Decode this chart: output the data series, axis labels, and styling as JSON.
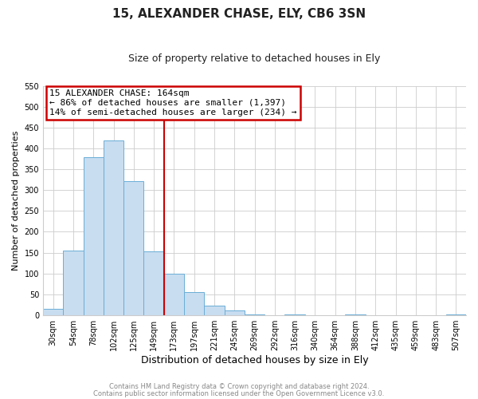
{
  "title": "15, ALEXANDER CHASE, ELY, CB6 3SN",
  "subtitle": "Size of property relative to detached houses in Ely",
  "xlabel": "Distribution of detached houses by size in Ely",
  "ylabel": "Number of detached properties",
  "bin_labels": [
    "30sqm",
    "54sqm",
    "78sqm",
    "102sqm",
    "125sqm",
    "149sqm",
    "173sqm",
    "197sqm",
    "221sqm",
    "245sqm",
    "269sqm",
    "292sqm",
    "316sqm",
    "340sqm",
    "364sqm",
    "388sqm",
    "412sqm",
    "435sqm",
    "459sqm",
    "483sqm",
    "507sqm"
  ],
  "bar_heights": [
    15,
    155,
    380,
    420,
    322,
    153,
    100,
    55,
    22,
    10,
    2,
    0,
    2,
    0,
    0,
    2,
    0,
    0,
    0,
    0,
    2
  ],
  "bar_color": "#c8ddf0",
  "bar_edge_color": "#6aaed6",
  "reference_line_x": 5.5,
  "reference_line_color": "#cc0000",
  "ylim": [
    0,
    550
  ],
  "yticks": [
    0,
    50,
    100,
    150,
    200,
    250,
    300,
    350,
    400,
    450,
    500,
    550
  ],
  "annotation_title": "15 ALEXANDER CHASE: 164sqm",
  "annotation_line1": "← 86% of detached houses are smaller (1,397)",
  "annotation_line2": "14% of semi-detached houses are larger (234) →",
  "annotation_box_color": "#cc0000",
  "footer_line1": "Contains HM Land Registry data © Crown copyright and database right 2024.",
  "footer_line2": "Contains public sector information licensed under the Open Government Licence v3.0.",
  "background_color": "#ffffff",
  "grid_color": "#cccccc",
  "title_fontsize": 11,
  "subtitle_fontsize": 9,
  "ylabel_fontsize": 8,
  "xlabel_fontsize": 9,
  "tick_fontsize": 7,
  "annotation_fontsize": 8,
  "footer_fontsize": 6
}
